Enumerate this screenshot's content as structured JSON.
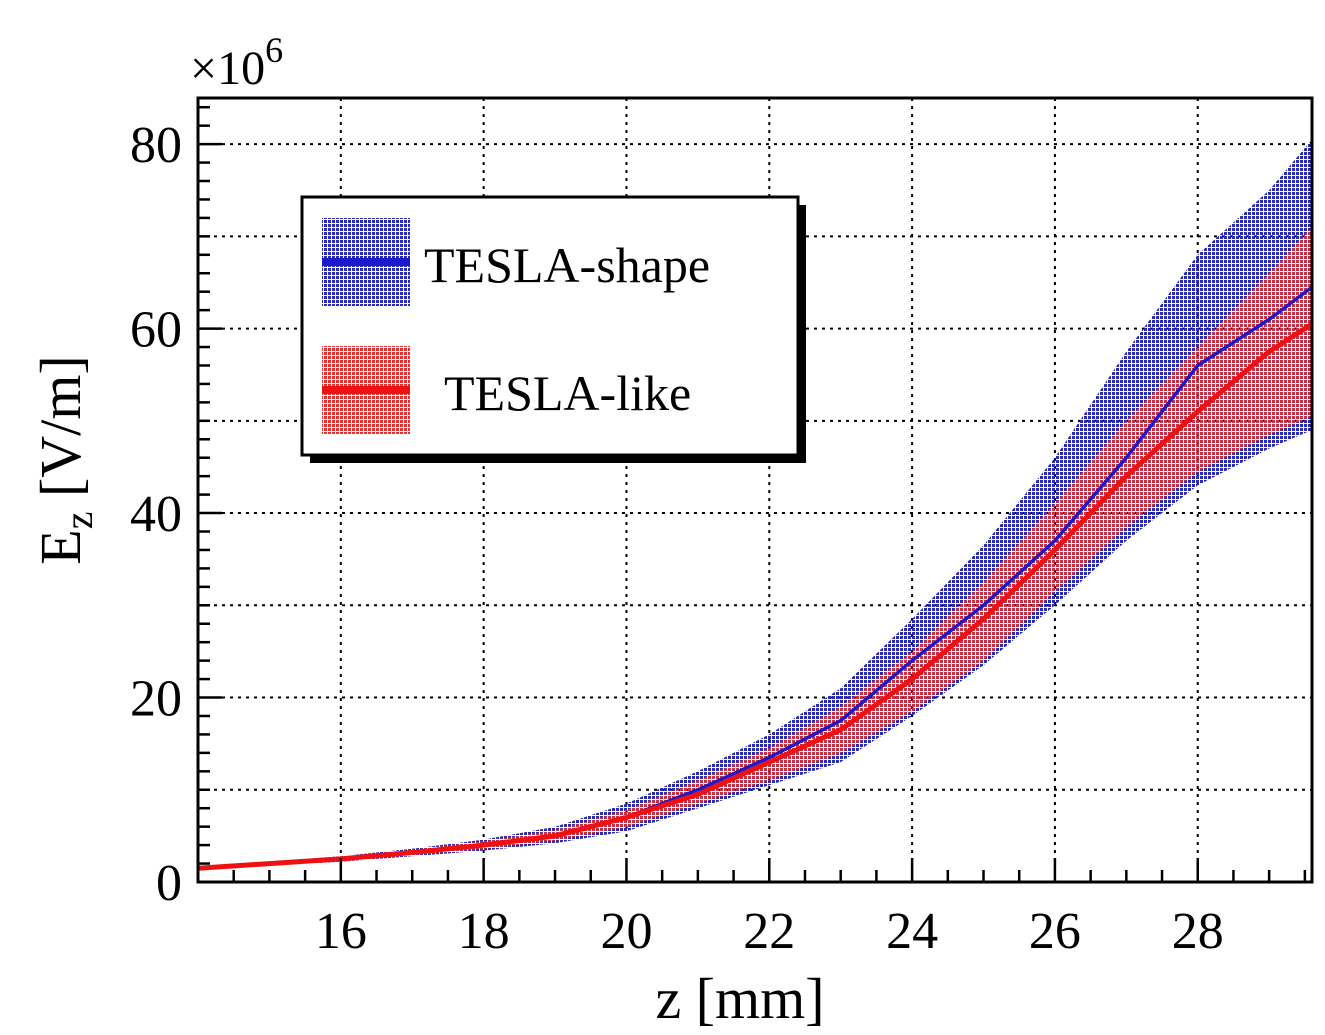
{
  "chart_data": {
    "type": "line",
    "title": "",
    "xlabel": "z [mm]",
    "ylabel_main": "E",
    "ylabel_sub": "z",
    "ylabel_unit": " [V/m]",
    "y_multiplier_prefix": "×10",
    "y_multiplier_exp": "6",
    "xlim": [
      14.0,
      29.6
    ],
    "ylim": [
      0,
      85
    ],
    "xticks": [
      16,
      18,
      20,
      22,
      24,
      26,
      28
    ],
    "yticks": [
      0,
      20,
      40,
      60,
      80
    ],
    "grid": true,
    "legend_position": "top-left",
    "x": [
      14.0,
      15.0,
      16.0,
      17.0,
      18.0,
      19.0,
      20.0,
      21.0,
      22.0,
      23.0,
      24.0,
      25.0,
      26.0,
      27.0,
      28.0,
      29.0,
      29.6
    ],
    "series": [
      {
        "name": "TESLA-shape",
        "color": "#1a1acc",
        "band_color": "#2b2bb0",
        "values": [
          1.5,
          2.0,
          2.5,
          3.2,
          4.0,
          5.0,
          7.0,
          10.0,
          13.5,
          17.5,
          24.0,
          30.0,
          37.0,
          46.0,
          56.0,
          61.0,
          64.5
        ],
        "lower": [
          1.4,
          1.8,
          2.2,
          2.8,
          3.4,
          4.2,
          5.5,
          8.0,
          10.5,
          13.0,
          18.0,
          23.5,
          30.0,
          37.0,
          43.0,
          47.0,
          49.0
        ],
        "upper": [
          1.7,
          2.2,
          2.8,
          3.6,
          4.6,
          6.0,
          8.5,
          12.0,
          16.0,
          21.0,
          28.5,
          36.5,
          46.0,
          57.5,
          68.0,
          75.0,
          80.5
        ]
      },
      {
        "name": "TESLA-like",
        "color": "#ee1111",
        "band_color": "#dd3333",
        "values": [
          1.5,
          2.0,
          2.5,
          3.2,
          4.0,
          5.0,
          7.0,
          9.5,
          13.0,
          16.5,
          22.0,
          28.5,
          36.0,
          44.0,
          51.0,
          57.5,
          60.5
        ],
        "lower": [
          1.4,
          1.8,
          2.2,
          2.9,
          3.6,
          4.5,
          6.0,
          8.5,
          11.0,
          14.0,
          18.5,
          24.0,
          31.5,
          38.5,
          44.5,
          48.5,
          50.5
        ],
        "upper": [
          1.6,
          2.1,
          2.7,
          3.5,
          4.4,
          5.6,
          7.8,
          11.0,
          14.5,
          19.0,
          25.0,
          32.5,
          41.0,
          50.0,
          58.0,
          66.0,
          71.0
        ]
      }
    ]
  }
}
